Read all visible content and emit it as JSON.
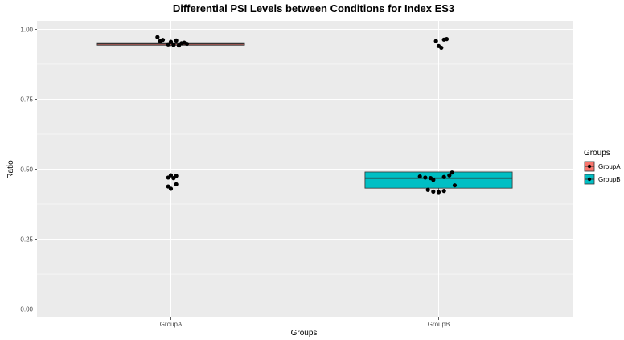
{
  "chart_data": {
    "type": "boxplot",
    "title": "Differential PSI Levels between Conditions for Index ES3",
    "xlabel": "Groups",
    "ylabel": "Ratio",
    "ylim": [
      -0.03,
      1.03
    ],
    "yticks": [
      0.0,
      0.25,
      0.5,
      0.75,
      1.0
    ],
    "ytick_labels": [
      "0.00",
      "0.25",
      "0.50",
      "0.75",
      "1.00"
    ],
    "categories": [
      "GroupA",
      "GroupB"
    ],
    "grid": true,
    "legend": {
      "title": "Groups",
      "position": "right",
      "entries": [
        "GroupA",
        "GroupB"
      ]
    },
    "colors": {
      "GroupA": "#f8766d",
      "GroupB": "#00bfc4",
      "panel": "#ebebeb",
      "grid": "#ffffff",
      "points": "#000000"
    },
    "series": [
      {
        "name": "GroupA",
        "box": {
          "q1": 0.943,
          "median": 0.948,
          "q3": 0.952,
          "whisker_low": 0.94,
          "whisker_high": 0.96
        },
        "points": [
          {
            "x": -0.05,
            "y": 0.972
          },
          {
            "x": -0.03,
            "y": 0.962
          },
          {
            "x": 0.0,
            "y": 0.955
          },
          {
            "x": 0.02,
            "y": 0.96
          },
          {
            "x": 0.04,
            "y": 0.95
          },
          {
            "x": -0.01,
            "y": 0.946
          },
          {
            "x": 0.01,
            "y": 0.944
          },
          {
            "x": 0.03,
            "y": 0.942
          },
          {
            "x": 0.05,
            "y": 0.952
          },
          {
            "x": -0.04,
            "y": 0.958
          },
          {
            "x": 0.06,
            "y": 0.948
          },
          {
            "x": 0.0,
            "y": 0.478
          },
          {
            "x": 0.02,
            "y": 0.476
          },
          {
            "x": -0.01,
            "y": 0.47
          },
          {
            "x": 0.01,
            "y": 0.468
          },
          {
            "x": 0.02,
            "y": 0.446
          },
          {
            "x": -0.01,
            "y": 0.438
          },
          {
            "x": 0.0,
            "y": 0.43
          }
        ]
      },
      {
        "name": "GroupB",
        "box": {
          "q1": 0.432,
          "median": 0.468,
          "q3": 0.49,
          "whisker_low": 0.42,
          "whisker_high": 0.49
        },
        "points": [
          {
            "x": -0.01,
            "y": 0.958
          },
          {
            "x": 0.02,
            "y": 0.963
          },
          {
            "x": 0.03,
            "y": 0.965
          },
          {
            "x": 0.0,
            "y": 0.94
          },
          {
            "x": 0.01,
            "y": 0.934
          },
          {
            "x": -0.07,
            "y": 0.474
          },
          {
            "x": -0.05,
            "y": 0.47
          },
          {
            "x": -0.03,
            "y": 0.468
          },
          {
            "x": -0.02,
            "y": 0.462
          },
          {
            "x": 0.02,
            "y": 0.472
          },
          {
            "x": 0.04,
            "y": 0.478
          },
          {
            "x": 0.05,
            "y": 0.488
          },
          {
            "x": 0.06,
            "y": 0.442
          },
          {
            "x": -0.04,
            "y": 0.426
          },
          {
            "x": -0.02,
            "y": 0.42
          },
          {
            "x": 0.0,
            "y": 0.418
          },
          {
            "x": 0.02,
            "y": 0.422
          }
        ]
      }
    ]
  }
}
